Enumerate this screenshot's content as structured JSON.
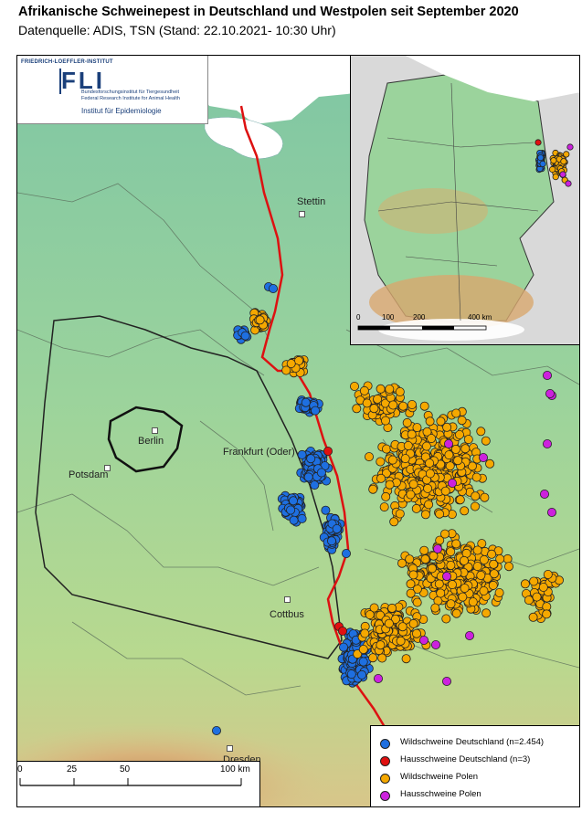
{
  "title": "Afrikanische Schweinepest in Deutschland und Westpolen seit September 2020",
  "subtitle": "Datenquelle: ADIS, TSN (Stand: 22.10.2021- 10:30 Uhr)",
  "logo": {
    "top": "FRIEDRICH-LOEFFLER-INSTITUT",
    "acronym": "FLI",
    "line_de": "Bundesforschungsinstitut für Tiergesundheit",
    "line_en": "Federal Research Institute for Animal Health",
    "institute": "Institut für Epidemiologie"
  },
  "cities": {
    "stettin": "Stettin",
    "berlin": "Berlin",
    "potsdam": "Potsdam",
    "frankfurt": "Frankfurt (Oder)",
    "cottbus": "Cottbus",
    "dresden": "Dresden"
  },
  "scalebar": {
    "t0": "0",
    "t1": "25",
    "t2": "50",
    "t3": "100 km"
  },
  "inset_scale": {
    "t0": "0",
    "t1": "100",
    "t2": "200",
    "t3": "400 km"
  },
  "legend": {
    "items": [
      {
        "label": "Wildschweine Deutschland (n=2.454)",
        "color": "#1e6fe0"
      },
      {
        "label": "Hausschweine Deutschland (n=3)",
        "color": "#e01010"
      },
      {
        "label": "Wildschweine Polen",
        "color": "#f5a800"
      },
      {
        "label": "Hausschweine Polen",
        "color": "#cc22dd"
      }
    ]
  },
  "colors": {
    "border_line": "#dd1111",
    "sea": "#ffffff",
    "land_low": "#8fcfa0",
    "land_mid": "#9fd49a"
  }
}
